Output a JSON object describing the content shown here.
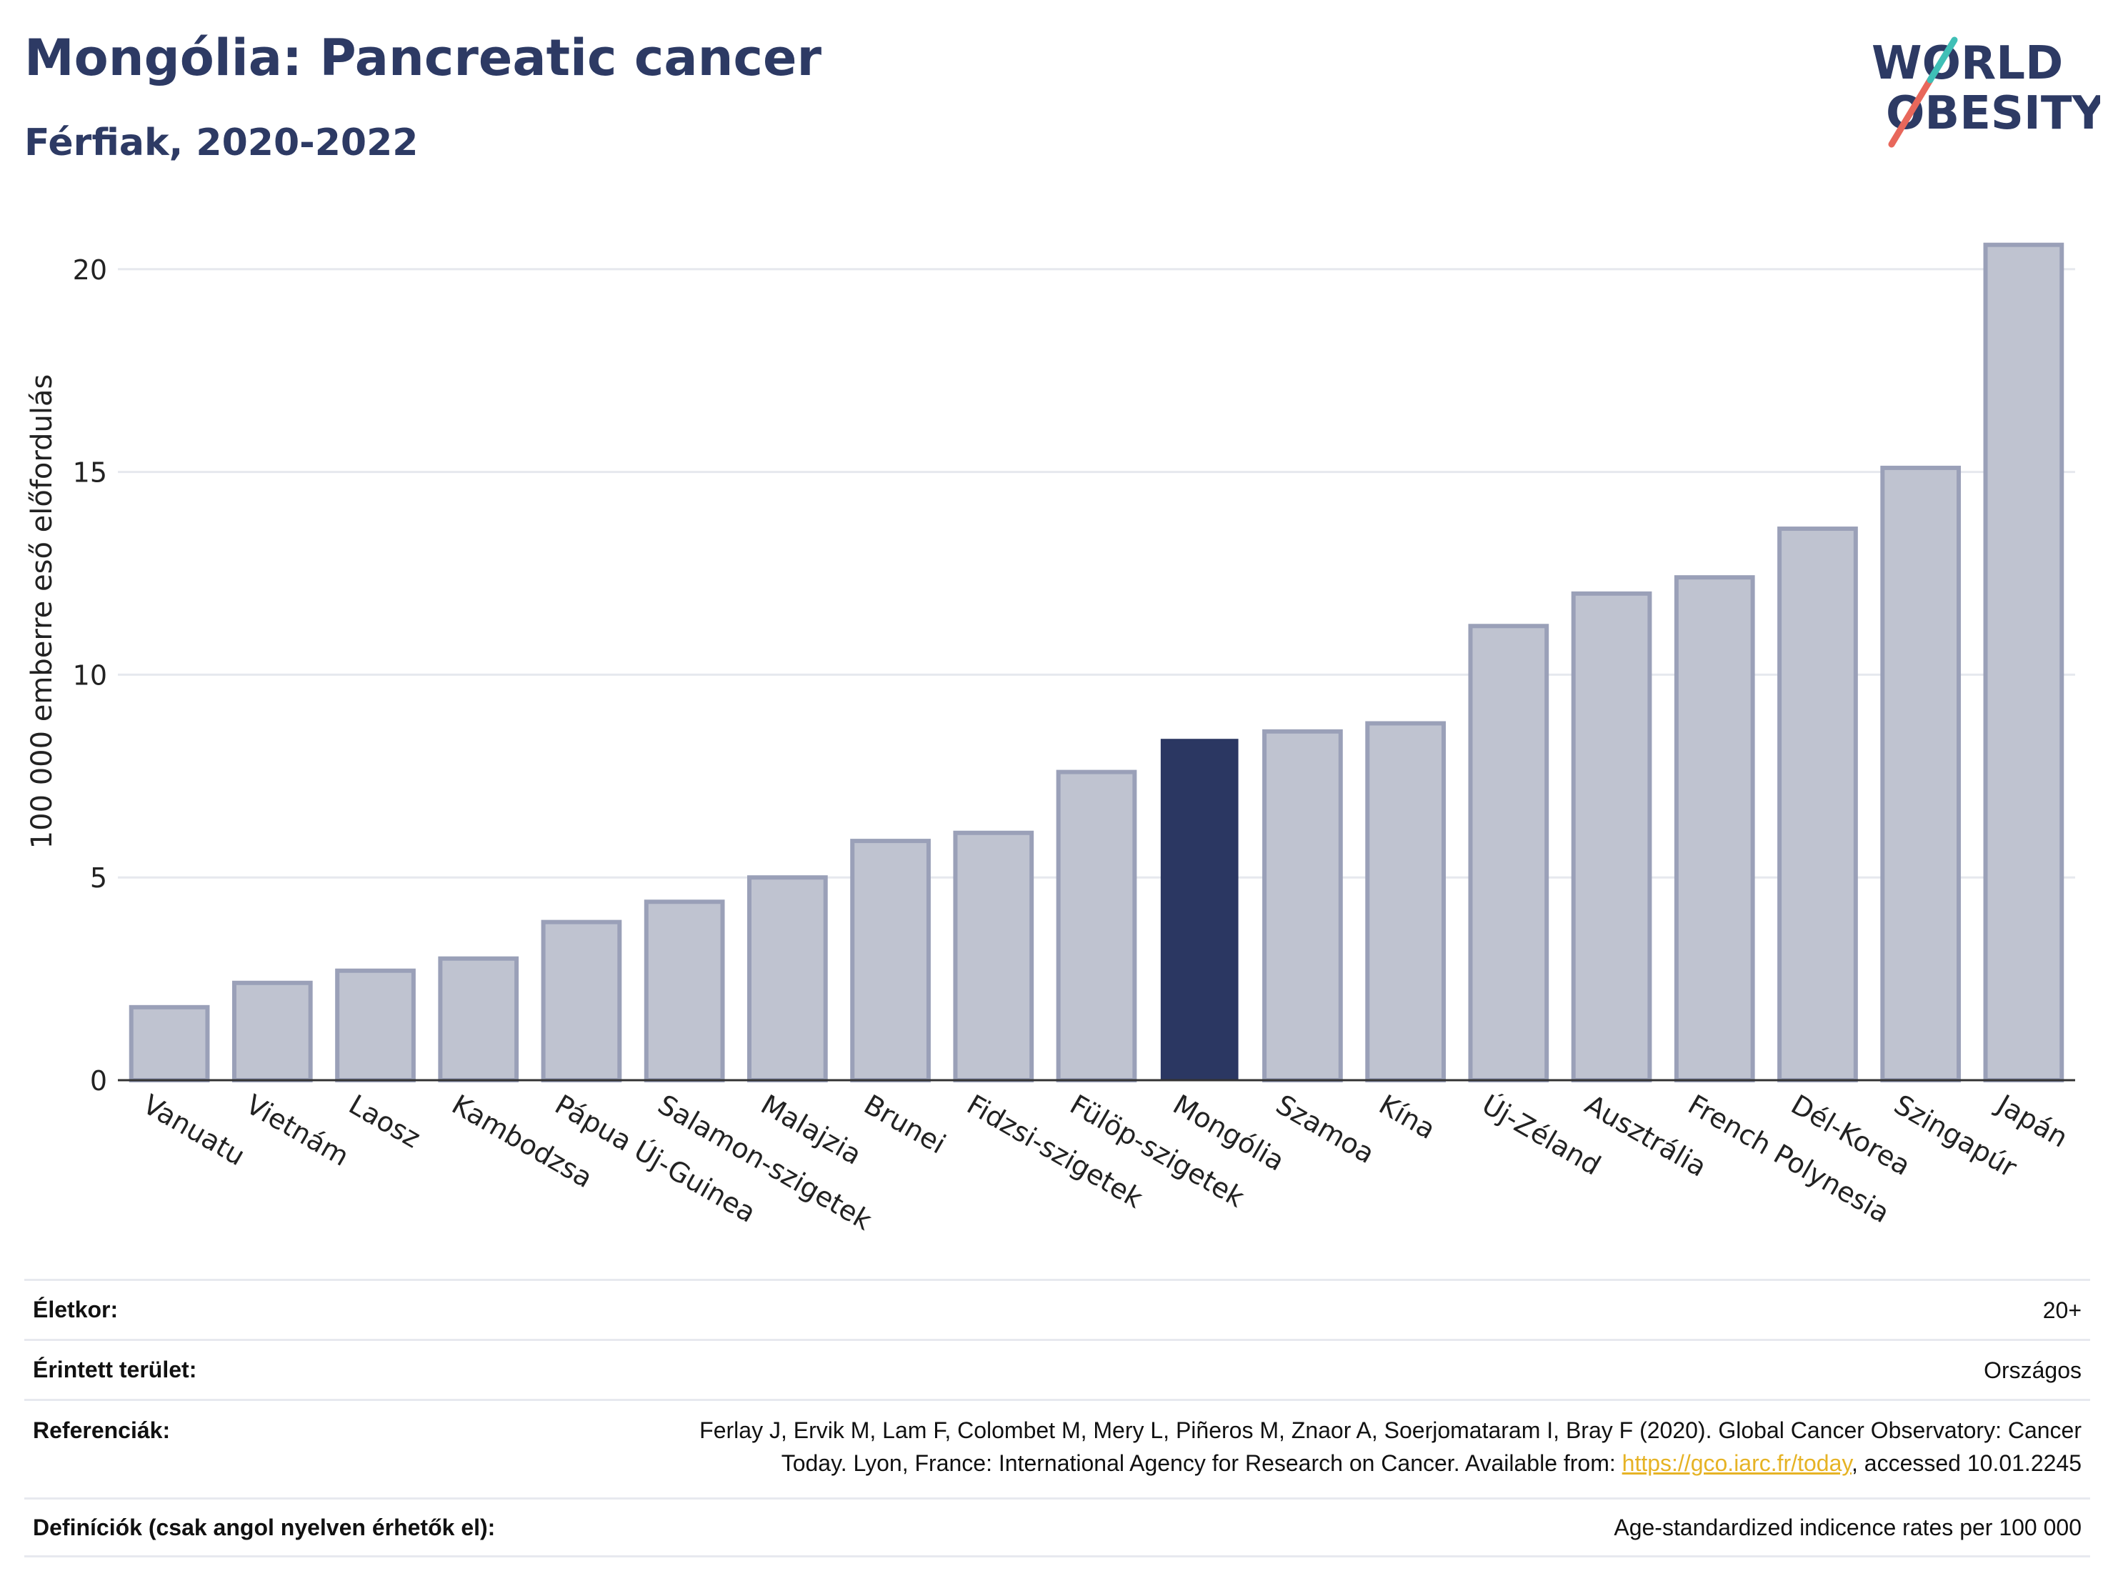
{
  "header": {
    "title": "Mongólia: Pancreatic cancer",
    "subtitle": "Férfiak, 2020-2022"
  },
  "logo": {
    "line1": "WORLD",
    "line2": "OBESITY",
    "slash_colors": [
      "#e8675b",
      "#3fbfb6"
    ]
  },
  "colors": {
    "bar": "#bfc3d0",
    "bar_border": "#9aa0b8",
    "highlight": "#2b3762",
    "text": "#2d3a64"
  },
  "chart_data": {
    "type": "bar",
    "ylabel": "100 000 emberre eső előfordulás",
    "ylim": [
      0,
      21
    ],
    "yticks": [
      0,
      5,
      10,
      15,
      20
    ],
    "grid": true,
    "highlight": "Mongólia",
    "categories": [
      "Vanuatu",
      "Vietnám",
      "Laosz",
      "Kambodzsa",
      "Pápua Új-Guinea",
      "Salamon-szigetek",
      "Malajzia",
      "Brunei",
      "Fidzsi-szigetek",
      "Fülöp-szigetek",
      "Mongólia",
      "Szamoa",
      "Kína",
      "Új-Zéland",
      "Ausztrália",
      "French Polynesia",
      "Dél-Korea",
      "Szingapúr",
      "Japán"
    ],
    "values": [
      1.8,
      2.4,
      2.7,
      3.0,
      3.9,
      4.4,
      5.0,
      5.9,
      6.1,
      7.6,
      8.4,
      8.6,
      8.8,
      11.2,
      12.0,
      12.4,
      13.6,
      15.1,
      20.6
    ]
  },
  "info": {
    "age_label": "Életkor:",
    "age_value": "20+",
    "area_label": "Érintett terület:",
    "area_value": "Országos",
    "ref_label": "Referenciák:",
    "ref_text_1": "Ferlay J, Ervik M, Lam F, Colombet M, Mery L, Piñeros M, Znaor A, Soerjomataram I, Bray F (2020). Global Cancer Observatory: Cancer",
    "ref_text_2": "Today. Lyon, France: International Agency for Research on Cancer. Available from:",
    "ref_link": "https://gco.iarc.fr/today",
    "ref_text_3": ", accessed 10.01.2245",
    "def_label": "Definíciók (csak angol nyelven érhetők el):",
    "def_value": "Age-standardized indicence rates per 100 000"
  }
}
